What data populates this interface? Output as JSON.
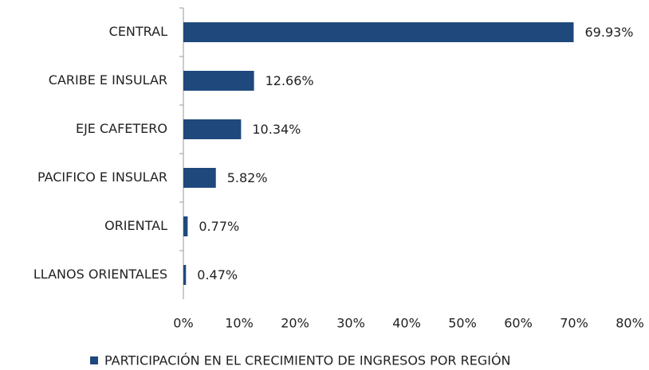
{
  "chart_data": {
    "type": "hbar",
    "categories": [
      "CENTRAL",
      "CARIBE E INSULAR",
      "EJE CAFETERO",
      "PACIFICO E INSULAR",
      "ORIENTAL",
      "LLANOS ORIENTALES"
    ],
    "series": [
      {
        "name": "PARTICIPACIÓN EN EL CRECIMIENTO DE INGRESOS POR REGIÓN",
        "color": "#1f497d",
        "values": [
          69.93,
          12.66,
          10.34,
          5.82,
          0.77,
          0.47
        ],
        "value_labels": [
          "69.93%",
          "12.66%",
          "10.34%",
          "5.82%",
          "0.77%",
          "0.47%"
        ]
      }
    ],
    "xlim": [
      0,
      80
    ],
    "xticks": [
      {
        "value": 0,
        "label": "0%"
      },
      {
        "value": 10,
        "label": "10%"
      },
      {
        "value": 20,
        "label": "20%"
      },
      {
        "value": 30,
        "label": "30%"
      },
      {
        "value": 40,
        "label": "40%"
      },
      {
        "value": 50,
        "label": "50%"
      },
      {
        "value": 60,
        "label": "60%"
      },
      {
        "value": 70,
        "label": "70%"
      },
      {
        "value": 80,
        "label": "80%"
      }
    ],
    "legend": "bottom"
  }
}
